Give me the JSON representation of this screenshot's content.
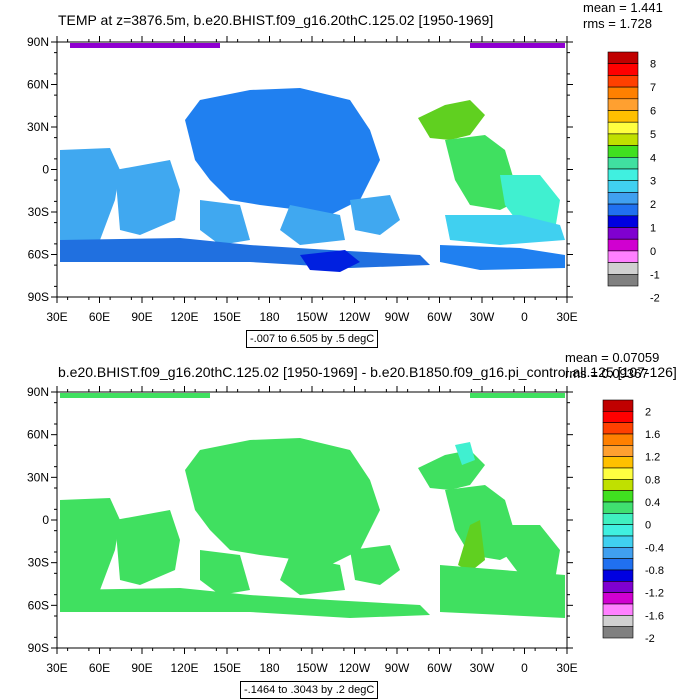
{
  "panels": [
    {
      "title": "TEMP at z=3876.5m, b.e20.BHIST.f09_g16.20thC.125.02 [1950-1969]",
      "mean": "mean = 1.441",
      "rms": "rms = 1.728",
      "contour_info": "-.007 to 6.505 by .5 degC",
      "lat_labels": [
        "90N",
        "60N",
        "30N",
        "0",
        "30S",
        "60S",
        "90S"
      ],
      "lon_labels": [
        "30E",
        "60E",
        "90E",
        "120E",
        "150E",
        "180",
        "150W",
        "120W",
        "90W",
        "60W",
        "30W",
        "0",
        "30E"
      ],
      "colorbar": {
        "labels": [
          "8",
          "7",
          "6",
          "5",
          "4",
          "3",
          "2",
          "1",
          "0",
          "-1",
          "-2"
        ],
        "colors": [
          "#c00000",
          "#ff0000",
          "#ff4000",
          "#ff8000",
          "#ffa030",
          "#ffc000",
          "#ffff40",
          "#c0e000",
          "#40e020",
          "#40e0a0",
          "#40f0e0",
          "#40d0f0",
          "#40a0f0",
          "#2070f0",
          "#0000e0",
          "#8000d0",
          "#d000d0",
          "#ff80ff",
          "#d0d0d0",
          "#808080"
        ]
      }
    },
    {
      "title": "b.e20.BHIST.f09_g16.20thC.125.02 [1950-1969] - b.e20.B1850.f09_g16.pi_control.all.125 [107-126]",
      "mean": "mean = 0.07059",
      "rms": "rms = 0.09367",
      "contour_info": "-.1464 to .3043 by .2 degC",
      "lat_labels": [
        "90N",
        "60N",
        "30N",
        "0",
        "30S",
        "60S",
        "90S"
      ],
      "lon_labels": [
        "30E",
        "60E",
        "90E",
        "120E",
        "150E",
        "180",
        "150W",
        "120W",
        "90W",
        "60W",
        "30W",
        "0",
        "30E"
      ],
      "colorbar": {
        "labels": [
          "2",
          "1.6",
          "1.2",
          "0.8",
          "0.4",
          "0",
          "-0.4",
          "-0.8",
          "-1.2",
          "-1.6",
          "-2"
        ],
        "colors": [
          "#c00000",
          "#ff0000",
          "#ff4000",
          "#ff8000",
          "#ffa030",
          "#ffc000",
          "#ffff40",
          "#c0e000",
          "#40e020",
          "#40e070",
          "#40f0c0",
          "#40f0e0",
          "#40d0f0",
          "#40a0f0",
          "#2070f0",
          "#0000e0",
          "#8000d0",
          "#d000d0",
          "#ff80ff",
          "#d0d0d0",
          "#808080"
        ]
      }
    }
  ]
}
